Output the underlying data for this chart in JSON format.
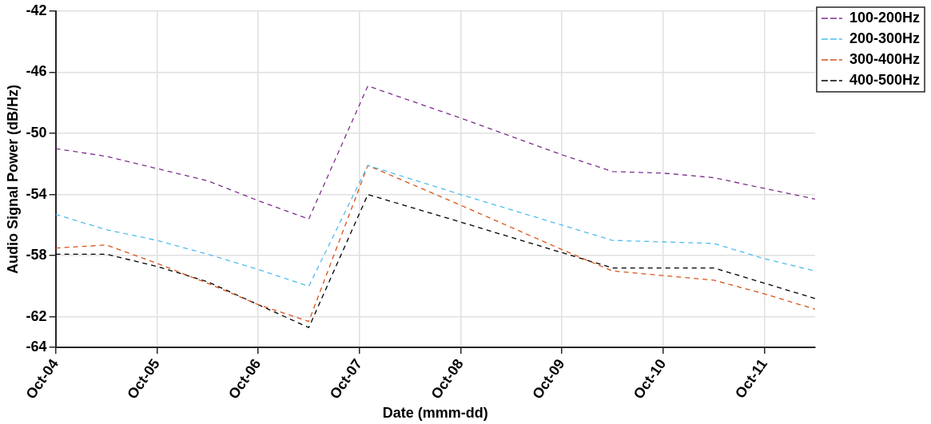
{
  "chart_data": {
    "type": "line",
    "xlabel": "Date (mmm-dd)",
    "ylabel": "Audio Signal Power (dB/Hz)",
    "x": [
      "--10-04",
      "--10-04T12:00",
      "--10-05",
      "--10-05T12:00",
      "--10-06",
      "--10-06T12:00",
      "--10-07T02:00",
      "--10-08",
      "--10-09",
      "--10-09T12:00",
      "--10-10",
      "--10-10T12:00",
      "--10-11",
      "--10-11T12:00"
    ],
    "series": [
      {
        "name": "100-200Hz",
        "color": "#7e2f8e",
        "values": [
          -51.0,
          -51.5,
          -52.3,
          -53.1,
          -54.4,
          -55.6,
          -46.9,
          -49.0,
          -51.4,
          -52.5,
          -52.6,
          -52.9,
          -53.6,
          -54.3
        ]
      },
      {
        "name": "200-300Hz",
        "color": "#4dbeee",
        "values": [
          -55.3,
          -56.3,
          -57.0,
          -57.9,
          -58.9,
          -60.0,
          -52.1,
          -54.0,
          -56.0,
          -57.0,
          -57.1,
          -57.2,
          -58.2,
          -59.0
        ]
      },
      {
        "name": "300-400Hz",
        "color": "#d95319",
        "values": [
          -57.5,
          -57.3,
          -58.5,
          -59.8,
          -61.2,
          -62.3,
          -52.1,
          -54.7,
          -57.6,
          -59.0,
          -59.3,
          -59.6,
          -60.5,
          -61.5
        ]
      },
      {
        "name": "400-500Hz",
        "color": "#000000",
        "values": [
          -57.9,
          -57.9,
          -58.7,
          -59.7,
          -61.2,
          -62.7,
          -54.0,
          -55.8,
          -57.8,
          -58.8,
          -58.8,
          -58.8,
          -59.8,
          -60.8
        ]
      }
    ],
    "xlim": [
      "--10-04",
      "--10-11T12:00"
    ],
    "xticks": [
      {
        "value": "--10-04",
        "label": "Oct-04"
      },
      {
        "value": "--10-05",
        "label": "Oct-05"
      },
      {
        "value": "--10-06",
        "label": "Oct-06"
      },
      {
        "value": "--10-07",
        "label": "Oct-07"
      },
      {
        "value": "--10-08",
        "label": "Oct-08"
      },
      {
        "value": "--10-09",
        "label": "Oct-09"
      },
      {
        "value": "--10-10",
        "label": "Oct-10"
      },
      {
        "value": "--10-11",
        "label": "Oct-11"
      }
    ],
    "ylim": [
      -64,
      -42
    ],
    "yticks": [
      -64,
      -62,
      -58,
      -54,
      -50,
      -46,
      -42
    ],
    "grid": true,
    "legend": "top right",
    "marker": "none",
    "line_style": "dashed"
  }
}
